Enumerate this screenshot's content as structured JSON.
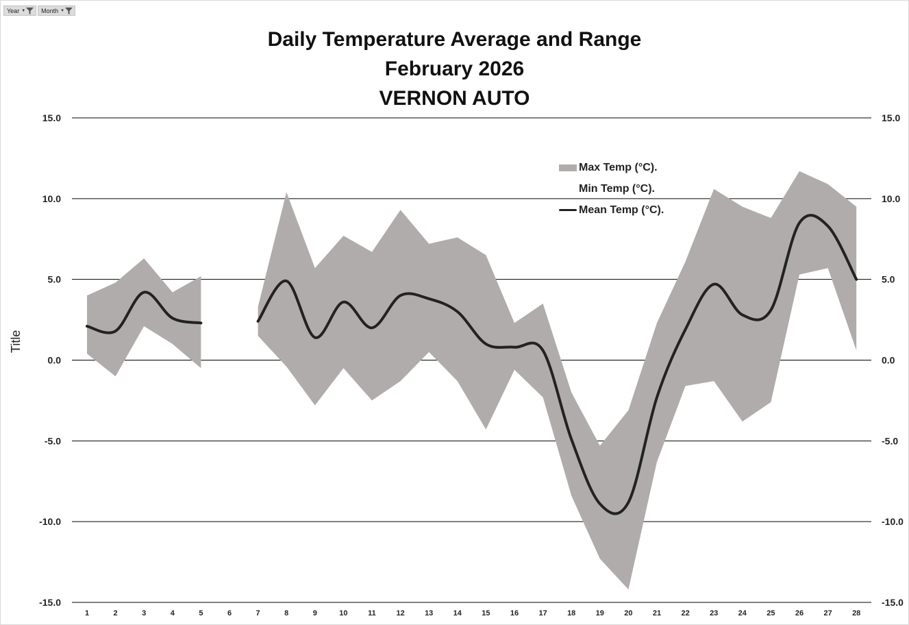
{
  "filters": [
    {
      "label": "Year"
    },
    {
      "label": "Month"
    }
  ],
  "chart_data": {
    "type": "area",
    "title_lines": [
      "Daily Temperature Average and Range",
      "February 2026",
      "VERNON AUTO"
    ],
    "ylabel": "Title",
    "xlabel": "",
    "ylim": [
      -15,
      15
    ],
    "yticks": [
      15,
      10,
      5,
      0,
      -5,
      -10,
      -15
    ],
    "ytick_labels": [
      "15.0",
      "10.0",
      "5.0",
      "0.0",
      "-5.0",
      "-10.0",
      "-15.0"
    ],
    "grid": true,
    "legend_position": "top-right",
    "categories": [
      "1",
      "2",
      "3",
      "4",
      "5",
      "6",
      "7",
      "8",
      "9",
      "10",
      "11",
      "12",
      "13",
      "14",
      "15",
      "16",
      "17",
      "18",
      "19",
      "20",
      "21",
      "22",
      "23",
      "24",
      "25",
      "26",
      "27",
      "28"
    ],
    "series": [
      {
        "name": "Max Temp (°C).",
        "kind": "area",
        "color": "#b0acab",
        "values": [
          4.0,
          4.8,
          6.3,
          4.2,
          5.2,
          null,
          3.3,
          10.4,
          5.7,
          7.7,
          6.7,
          9.3,
          7.2,
          7.6,
          6.5,
          2.3,
          3.5,
          -2.0,
          -5.3,
          -3.1,
          2.3,
          6.1,
          10.6,
          9.5,
          8.8,
          11.7,
          10.9,
          9.5
        ]
      },
      {
        "name": "Min Temp (°C).",
        "kind": "area",
        "color": "#ffffff",
        "values": [
          0.4,
          -1.0,
          2.1,
          1.0,
          -0.5,
          null,
          1.5,
          -0.4,
          -2.8,
          -0.5,
          -2.5,
          -1.3,
          0.5,
          -1.3,
          -4.3,
          -0.6,
          -2.3,
          -8.4,
          -12.3,
          -14.2,
          -6.3,
          -1.6,
          -1.3,
          -3.8,
          -2.6,
          5.3,
          5.7,
          0.6
        ]
      },
      {
        "name": "Mean Temp (°C).",
        "kind": "line",
        "color": "#222222",
        "values": [
          2.1,
          1.8,
          4.2,
          2.6,
          2.3,
          null,
          2.4,
          4.9,
          1.4,
          3.6,
          2.0,
          4.0,
          3.8,
          3.0,
          1.0,
          0.8,
          0.6,
          -4.9,
          -8.9,
          -8.8,
          -2.3,
          1.9,
          4.7,
          2.8,
          3.1,
          8.5,
          8.3,
          5.0
        ]
      }
    ]
  }
}
